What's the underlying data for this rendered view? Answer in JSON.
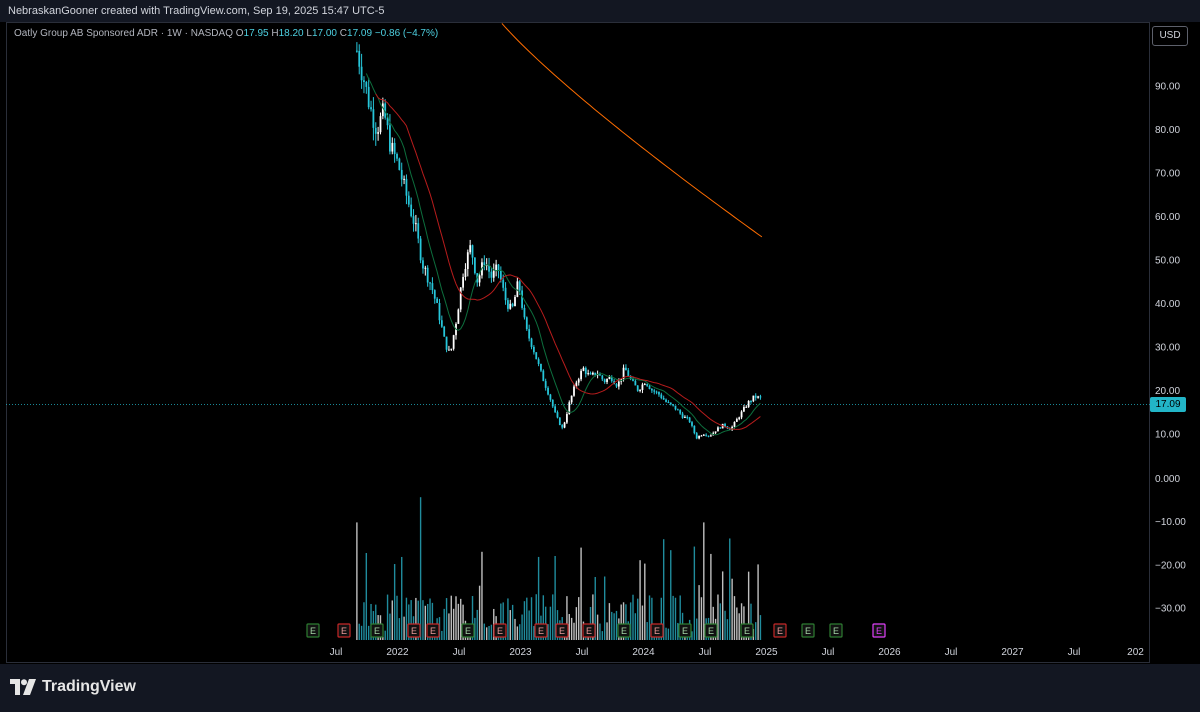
{
  "header": {
    "credit": "NebraskanGooner created with TradingView.com, Sep 19, 2025 15:47 UTC-5"
  },
  "legend": {
    "symbol": "Oatly Group AB Sponsored ADR · 1W · NASDAQ",
    "open_label": "O",
    "open": "17.95",
    "high_label": "H",
    "high": "18.20",
    "low_label": "L",
    "low": "17.00",
    "close_label": "C",
    "close": "17.09",
    "change": "−0.86 (−4.7%)"
  },
  "currency": "USD",
  "last_price_label": "17.09",
  "footer": {
    "brand": "TradingView"
  },
  "colors": {
    "up": "#ffffff",
    "down": "#26c6da",
    "ma_fast": "#0d6e3d",
    "ma_mid": "#b71c1c",
    "ma_slow": "#ff6d00",
    "earnings_green": "#2e7d32",
    "earnings_red": "#c62828",
    "earnings_future": "#e040fb",
    "last_price": "#22b5c7"
  },
  "chart_data": {
    "type": "candlestick",
    "price_axis": {
      "ticks": [
        "90.00",
        "80.00",
        "70.00",
        "60.00",
        "50.00",
        "40.00",
        "30.00",
        "20.00",
        "10.00"
      ]
    },
    "volume_axis": {
      "ticks": [
        "0.000",
        "−10.00",
        "−20.00",
        "−30.00"
      ]
    },
    "time_axis": {
      "ticks": [
        "Jul",
        "2022",
        "Jul",
        "2023",
        "Jul",
        "2024",
        "Jul",
        "2025",
        "Jul",
        "2026",
        "Jul",
        "2027",
        "Jul",
        "202"
      ]
    },
    "price_path": [
      [
        "2021-09-01",
        98
      ],
      [
        "2021-09-20",
        92
      ],
      [
        "2021-10-10",
        85
      ],
      [
        "2021-10-30",
        80
      ],
      [
        "2021-11-20",
        84
      ],
      [
        "2021-12-10",
        76
      ],
      [
        "2022-01-01",
        72
      ],
      [
        "2022-01-25",
        65
      ],
      [
        "2022-02-20",
        58
      ],
      [
        "2022-03-15",
        49
      ],
      [
        "2022-04-10",
        44
      ],
      [
        "2022-05-01",
        38
      ],
      [
        "2022-05-20",
        31
      ],
      [
        "2022-06-05",
        28
      ],
      [
        "2022-06-25",
        37
      ],
      [
        "2022-07-15",
        48
      ],
      [
        "2022-08-05",
        53
      ],
      [
        "2022-08-25",
        45
      ],
      [
        "2022-09-15",
        50
      ],
      [
        "2022-10-05",
        46
      ],
      [
        "2022-10-25",
        48
      ],
      [
        "2022-11-15",
        41
      ],
      [
        "2022-12-05",
        38
      ],
      [
        "2022-12-25",
        45
      ],
      [
        "2023-01-15",
        34
      ],
      [
        "2023-02-05",
        30
      ],
      [
        "2023-03-01",
        24
      ],
      [
        "2023-03-25",
        19
      ],
      [
        "2023-04-15",
        14
      ],
      [
        "2023-05-05",
        11
      ],
      [
        "2023-05-25",
        17
      ],
      [
        "2023-06-15",
        22
      ],
      [
        "2023-07-05",
        25
      ],
      [
        "2023-07-25",
        23
      ],
      [
        "2023-08-15",
        24
      ],
      [
        "2023-09-05",
        22
      ],
      [
        "2023-09-25",
        23
      ],
      [
        "2023-10-15",
        21
      ],
      [
        "2023-11-05",
        25
      ],
      [
        "2023-11-25",
        22
      ],
      [
        "2023-12-15",
        20
      ],
      [
        "2024-01-05",
        22
      ],
      [
        "2024-01-25",
        20
      ],
      [
        "2024-02-15",
        19
      ],
      [
        "2024-03-10",
        17
      ],
      [
        "2024-04-01",
        16
      ],
      [
        "2024-04-25",
        14
      ],
      [
        "2024-05-15",
        13
      ],
      [
        "2024-06-05",
        9
      ],
      [
        "2024-06-25",
        10
      ],
      [
        "2024-07-15",
        9.5
      ],
      [
        "2024-08-05",
        11
      ],
      [
        "2024-08-25",
        12
      ],
      [
        "2024-09-15",
        11
      ],
      [
        "2024-10-10",
        14
      ],
      [
        "2024-11-05",
        17
      ],
      [
        "2024-11-25",
        18.5
      ],
      [
        "2024-12-15",
        18
      ]
    ]
  }
}
